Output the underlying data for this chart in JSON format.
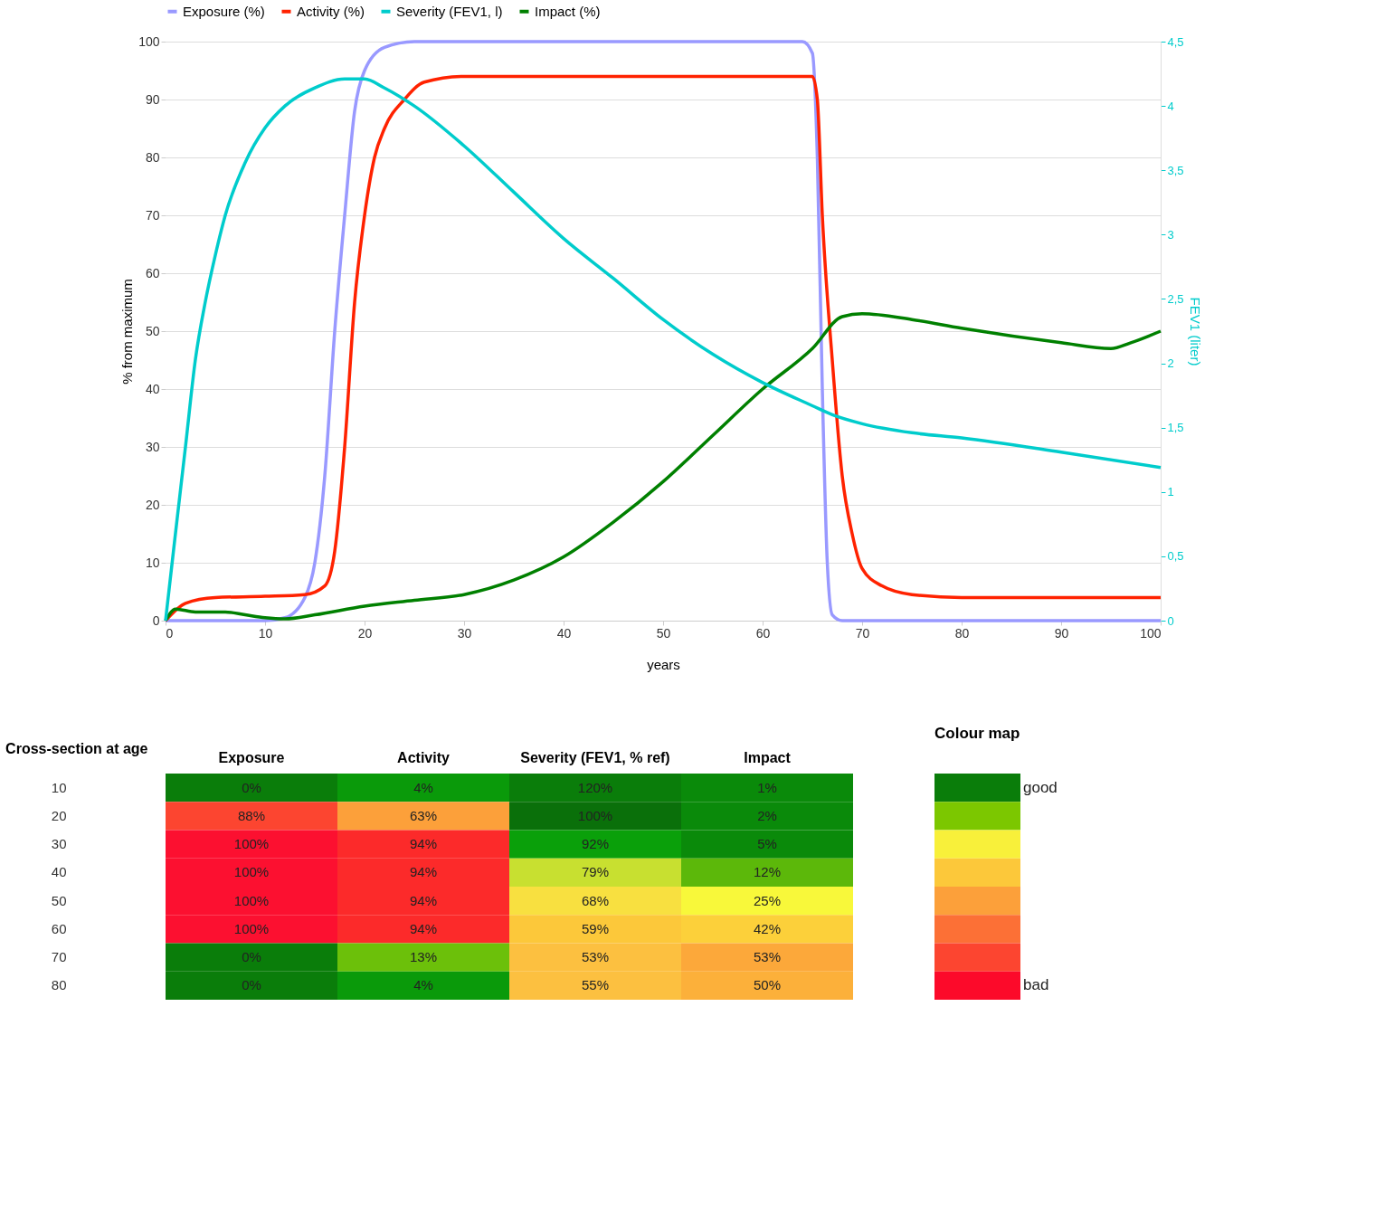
{
  "chart_data": [
    {
      "type": "line",
      "xlabel": "years",
      "ylabel": "% from maximum",
      "y2label": "FEV1 (liter)",
      "legend": "top",
      "grid": "y",
      "xlim": [
        0,
        100
      ],
      "xticks": [
        0,
        10,
        20,
        30,
        40,
        50,
        60,
        70,
        80,
        90,
        100
      ],
      "ylim": [
        0,
        100
      ],
      "yticks": [
        0,
        10,
        20,
        30,
        40,
        50,
        60,
        70,
        80,
        90,
        100
      ],
      "y2lim": [
        0,
        4.5
      ],
      "y2ticks": [
        0,
        {
          "value": 0.5,
          "label": "0,5"
        },
        1,
        {
          "value": 1.5,
          "label": "1,5"
        },
        2,
        {
          "value": 2.5,
          "label": "2,5"
        },
        3,
        {
          "value": 3.5,
          "label": "3,5"
        },
        4,
        {
          "value": 4.5,
          "label": "4,5"
        }
      ],
      "series": [
        {
          "name": "Exposure (%)",
          "color": "#9999ff",
          "x": [
            0,
            10,
            12,
            14,
            15,
            16,
            17,
            18,
            19,
            20,
            22,
            25,
            64,
            65,
            65.5,
            66,
            66.5,
            67,
            68,
            100
          ],
          "values": [
            0,
            0,
            0.5,
            4,
            10,
            25,
            50,
            70,
            88,
            95,
            99,
            100,
            100,
            98,
            80,
            40,
            10,
            1,
            0,
            0
          ]
        },
        {
          "name": "Activity (%)",
          "color": "#ff2200",
          "x": [
            0,
            2,
            5,
            10,
            14,
            16,
            17,
            18,
            19,
            20,
            21,
            22,
            24,
            26,
            30,
            65,
            65.5,
            66,
            67,
            68,
            69,
            70,
            72,
            75,
            80,
            100
          ],
          "values": [
            0,
            3,
            4,
            4.2,
            4.5,
            6,
            12,
            30,
            55,
            70,
            80,
            85,
            90,
            93,
            94,
            94,
            90,
            70,
            45,
            25,
            15,
            9,
            6,
            4.5,
            4,
            4
          ]
        },
        {
          "name": "Severity (FEV1, l)",
          "color": "#00cccc",
          "axis": "y2",
          "x": [
            0,
            1,
            2,
            3,
            4,
            5,
            6,
            8,
            10,
            12,
            15,
            18,
            20,
            22,
            25,
            30,
            35,
            40,
            45,
            50,
            55,
            60,
            65,
            67,
            70,
            75,
            80,
            90,
            100
          ],
          "values": [
            0,
            0.68,
            1.35,
            2.03,
            2.48,
            2.84,
            3.15,
            3.56,
            3.83,
            4.0,
            4.14,
            4.21,
            4.21,
            4.14,
            4.0,
            3.69,
            3.33,
            2.97,
            2.66,
            2.34,
            2.07,
            1.85,
            1.67,
            1.6,
            1.53,
            1.46,
            1.42,
            1.31,
            1.19
          ]
        },
        {
          "name": "Impact (%)",
          "color": "#008000",
          "x": [
            0,
            1,
            3,
            6,
            8,
            10,
            12,
            15,
            20,
            25,
            30,
            35,
            40,
            45,
            50,
            55,
            60,
            65,
            68,
            70,
            75,
            80,
            90,
            95,
            97,
            100
          ],
          "values": [
            0,
            2,
            1.5,
            1.5,
            1,
            0.5,
            0.3,
            1,
            2.5,
            3.5,
            4.5,
            7,
            11,
            17,
            24,
            32,
            40,
            47,
            52.5,
            53,
            52,
            50.5,
            48,
            47,
            48,
            50
          ]
        }
      ]
    },
    {
      "type": "heatmap",
      "ylabel": "Cross-section at age",
      "categories": [
        "Exposure",
        "Activity",
        "Severity (FEV1, % ref)",
        "Impact"
      ],
      "y_categories": [
        "10",
        "20",
        "30",
        "40",
        "50",
        "60",
        "70",
        "80"
      ],
      "cells": [
        [
          0,
          4,
          120,
          1
        ],
        [
          88,
          63,
          100,
          2
        ],
        [
          100,
          94,
          92,
          5
        ],
        [
          100,
          94,
          79,
          12
        ],
        [
          100,
          94,
          68,
          25
        ],
        [
          100,
          94,
          59,
          42
        ],
        [
          0,
          13,
          53,
          53
        ],
        [
          0,
          4,
          55,
          50
        ]
      ],
      "cell_labels": [
        [
          "0%",
          "4%",
          "120%",
          "1%"
        ],
        [
          "88%",
          "63%",
          "100%",
          "2%"
        ],
        [
          "100%",
          "94%",
          "92%",
          "5%"
        ],
        [
          "100%",
          "94%",
          "79%",
          "12%"
        ],
        [
          "100%",
          "94%",
          "68%",
          "25%"
        ],
        [
          "100%",
          "94%",
          "59%",
          "42%"
        ],
        [
          "0%",
          "13%",
          "53%",
          "53%"
        ],
        [
          "0%",
          "4%",
          "55%",
          "50%"
        ]
      ],
      "colors": [
        [
          "#0a7d0a",
          "#0a9a0a",
          "#0a7d0a",
          "#0a8a0a"
        ],
        [
          "#fc4530",
          "#fca03a",
          "#0a700a",
          "#0a8a0a"
        ],
        [
          "#fc1030",
          "#fc2a2a",
          "#0aa00a",
          "#0a8a0a"
        ],
        [
          "#fc1030",
          "#fc2a2a",
          "#c8e030",
          "#5cb80a"
        ],
        [
          "#fc1030",
          "#fc2a2a",
          "#f8e040",
          "#f8f83a"
        ],
        [
          "#fc1030",
          "#fc2a2a",
          "#fcc83a",
          "#fcd03a"
        ],
        [
          "#0a7d0a",
          "#6cc00a",
          "#fcc040",
          "#fca83a"
        ],
        [
          "#0a7d0a",
          "#0a9a0a",
          "#fcc040",
          "#fcb03a"
        ]
      ]
    },
    {
      "type": "other",
      "title": "Colour map",
      "categories": [
        "good",
        null,
        null,
        null,
        null,
        null,
        null,
        "bad"
      ],
      "colors": [
        "#0a7d0a",
        "#7cc700",
        "#f8f03a",
        "#fcc83a",
        "#fca03a",
        "#fc7036",
        "#fc4530",
        "#fc0a2a"
      ]
    }
  ]
}
